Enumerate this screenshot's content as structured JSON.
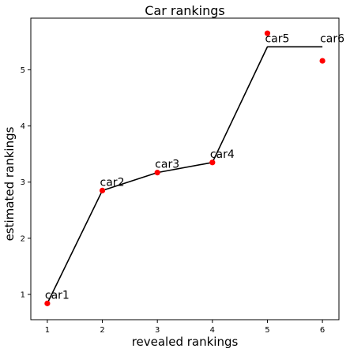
{
  "chart_data": {
    "type": "scatter",
    "title": "Car rankings",
    "xlabel": "revealed rankings",
    "ylabel": "estimated rankings",
    "xlim": [
      0.7,
      6.3
    ],
    "ylim": [
      0.55,
      5.92
    ],
    "xticks": [
      1,
      2,
      3,
      4,
      5,
      6
    ],
    "yticks": [
      1,
      2,
      3,
      4,
      5
    ],
    "grid": false,
    "legend": "none",
    "series": [
      {
        "type": "scatter",
        "color": "#ff0000",
        "x": [
          1,
          2,
          3,
          4,
          5,
          6
        ],
        "y": [
          0.84,
          2.85,
          3.17,
          3.35,
          5.65,
          5.16
        ]
      },
      {
        "type": "line",
        "color": "#000000",
        "x": [
          1,
          2,
          3,
          4,
          5,
          6
        ],
        "y": [
          0.84,
          2.85,
          3.17,
          3.35,
          5.41,
          5.41
        ]
      }
    ],
    "annotations": [
      {
        "text": "car1",
        "x": 1,
        "y": 0.84
      },
      {
        "text": "car2",
        "x": 2,
        "y": 2.85
      },
      {
        "text": "car3",
        "x": 3,
        "y": 3.17
      },
      {
        "text": "car4",
        "x": 4,
        "y": 3.35
      },
      {
        "text": "car5",
        "x": 5,
        "y": 5.41
      },
      {
        "text": "car6",
        "x": 6,
        "y": 5.41
      }
    ]
  }
}
